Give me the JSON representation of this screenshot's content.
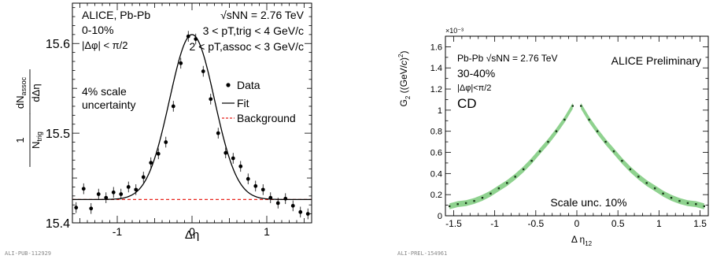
{
  "chart_data": [
    {
      "type": "scatter",
      "panel_id": "ALI-PUB-112929",
      "xlabel": "Δη",
      "ylabel": "(1/N_trig) dN_assoc/dΔη",
      "xlim": [
        -1.6,
        1.6
      ],
      "ylim": [
        15.4,
        15.645
      ],
      "x_ticks": [
        "-1",
        "0",
        "1"
      ],
      "y_ticks": [
        "15.4",
        "15.5",
        "15.6"
      ],
      "annotations": {
        "experiment": "ALICE, Pb-Pb",
        "centrality": "0-10%",
        "dphi_cut": "|Δφ| < π/2",
        "energy": "√sNN = 2.76 TeV",
        "pt_trig": "3 < pT,trig < 4 GeV/c",
        "pt_assoc": "2 < pT,assoc < 3 GeV/c",
        "scale_unc_line1": "4% scale",
        "scale_unc_line2": "uncertainty"
      },
      "legend": {
        "position": "right",
        "entries": [
          "Data",
          "Fit",
          "Background"
        ]
      },
      "series": [
        {
          "name": "Data",
          "x": [
            -1.55,
            -1.45,
            -1.35,
            -1.25,
            -1.15,
            -1.05,
            -0.95,
            -0.85,
            -0.75,
            -0.65,
            -0.55,
            -0.45,
            -0.35,
            -0.25,
            -0.15,
            -0.05,
            0.05,
            0.15,
            0.25,
            0.35,
            0.45,
            0.55,
            0.65,
            0.75,
            0.85,
            0.95,
            1.05,
            1.15,
            1.25,
            1.35,
            1.45,
            1.55
          ],
          "y": [
            15.417,
            15.438,
            15.416,
            15.432,
            15.428,
            15.434,
            15.432,
            15.44,
            15.437,
            15.451,
            15.467,
            15.477,
            15.49,
            15.53,
            15.578,
            15.608,
            15.605,
            15.569,
            15.538,
            15.5,
            15.478,
            15.472,
            15.463,
            15.449,
            15.441,
            15.437,
            15.428,
            15.422,
            15.427,
            15.419,
            15.412,
            15.41
          ],
          "yerr": 0.006
        },
        {
          "name": "Fit",
          "curve": "background + gaussian",
          "baseline": 15.426,
          "amplitude": 0.184,
          "sigma": 0.3
        },
        {
          "name": "Background",
          "baseline": 15.426
        }
      ]
    },
    {
      "type": "line",
      "panel_id": "ALI-PREL-154961",
      "xlabel": "Δ η12",
      "ylabel": "G2 ((GeV/c)²)",
      "y_multiplier": "×10⁻³",
      "xlim": [
        -1.6,
        1.6
      ],
      "ylim": [
        0,
        1.7
      ],
      "x_ticks": [
        "-1.5",
        "-1",
        "-0.5",
        "0",
        "0.5",
        "1",
        "1.5"
      ],
      "y_ticks": [
        "0",
        "0.2",
        "0.4",
        "0.6",
        "0.8",
        "1",
        "1.2",
        "1.4",
        "1.6"
      ],
      "annotations": {
        "system": "Pb-Pb",
        "energy": "√sNN = 2.76 TeV",
        "centrality": "30-40%",
        "dphi_cut": "|Δφ|<π/2",
        "label": "CD",
        "preliminary": "ALICE Preliminary",
        "scale_unc": "Scale unc. 10%"
      },
      "band_color": "#8fd28f",
      "series": [
        {
          "name": "G2",
          "x": [
            -1.55,
            -1.45,
            -1.35,
            -1.25,
            -1.15,
            -1.05,
            -0.95,
            -0.85,
            -0.75,
            -0.65,
            -0.55,
            -0.45,
            -0.35,
            -0.25,
            -0.15,
            -0.05,
            0.05,
            0.15,
            0.25,
            0.35,
            0.45,
            0.55,
            0.65,
            0.75,
            0.85,
            0.95,
            1.05,
            1.15,
            1.25,
            1.35,
            1.45,
            1.55
          ],
          "y": [
            0.09,
            0.11,
            0.12,
            0.14,
            0.17,
            0.21,
            0.26,
            0.31,
            0.37,
            0.44,
            0.52,
            0.61,
            0.7,
            0.8,
            0.91,
            1.04,
            1.04,
            0.91,
            0.8,
            0.7,
            0.61,
            0.52,
            0.44,
            0.37,
            0.31,
            0.26,
            0.21,
            0.17,
            0.14,
            0.12,
            0.11,
            0.09
          ],
          "band_halfwidth": 0.028
        }
      ]
    }
  ]
}
